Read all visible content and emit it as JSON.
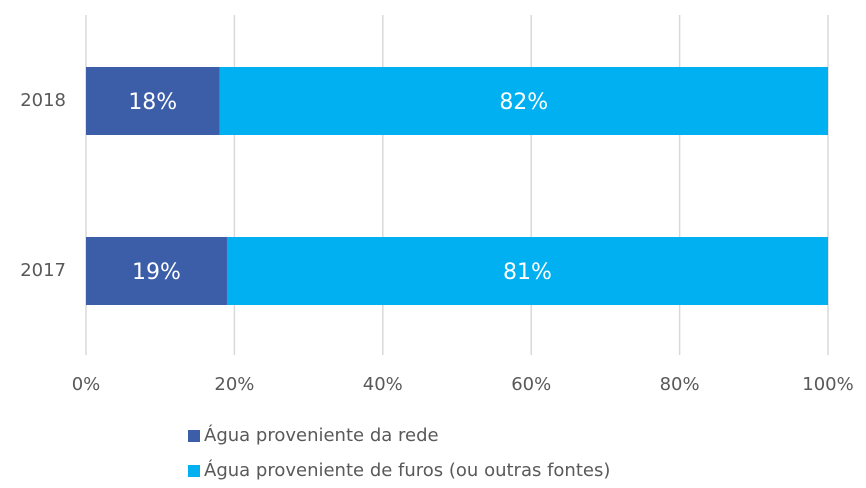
{
  "chart_data": {
    "type": "bar",
    "orientation": "horizontal",
    "stacked": true,
    "categories": [
      "2018",
      "2017"
    ],
    "series": [
      {
        "name": "Água proveniente da rede",
        "color": "#3c5ea9",
        "values": [
          18,
          19
        ],
        "value_labels": [
          "18%",
          "19%"
        ]
      },
      {
        "name": "Água proveniente de furos (ou outras fontes)",
        "color": "#00b0f0",
        "values": [
          82,
          81
        ],
        "value_labels": [
          "82%",
          "81%"
        ]
      }
    ],
    "xlim": [
      0,
      100
    ],
    "xticks": [
      {
        "value": 0,
        "label": "0%"
      },
      {
        "value": 20,
        "label": "20%"
      },
      {
        "value": 40,
        "label": "40%"
      },
      {
        "value": 60,
        "label": "60%"
      },
      {
        "value": 80,
        "label": "80%"
      },
      {
        "value": 100,
        "label": "100%"
      }
    ],
    "grid": true,
    "legend": "bottom"
  }
}
